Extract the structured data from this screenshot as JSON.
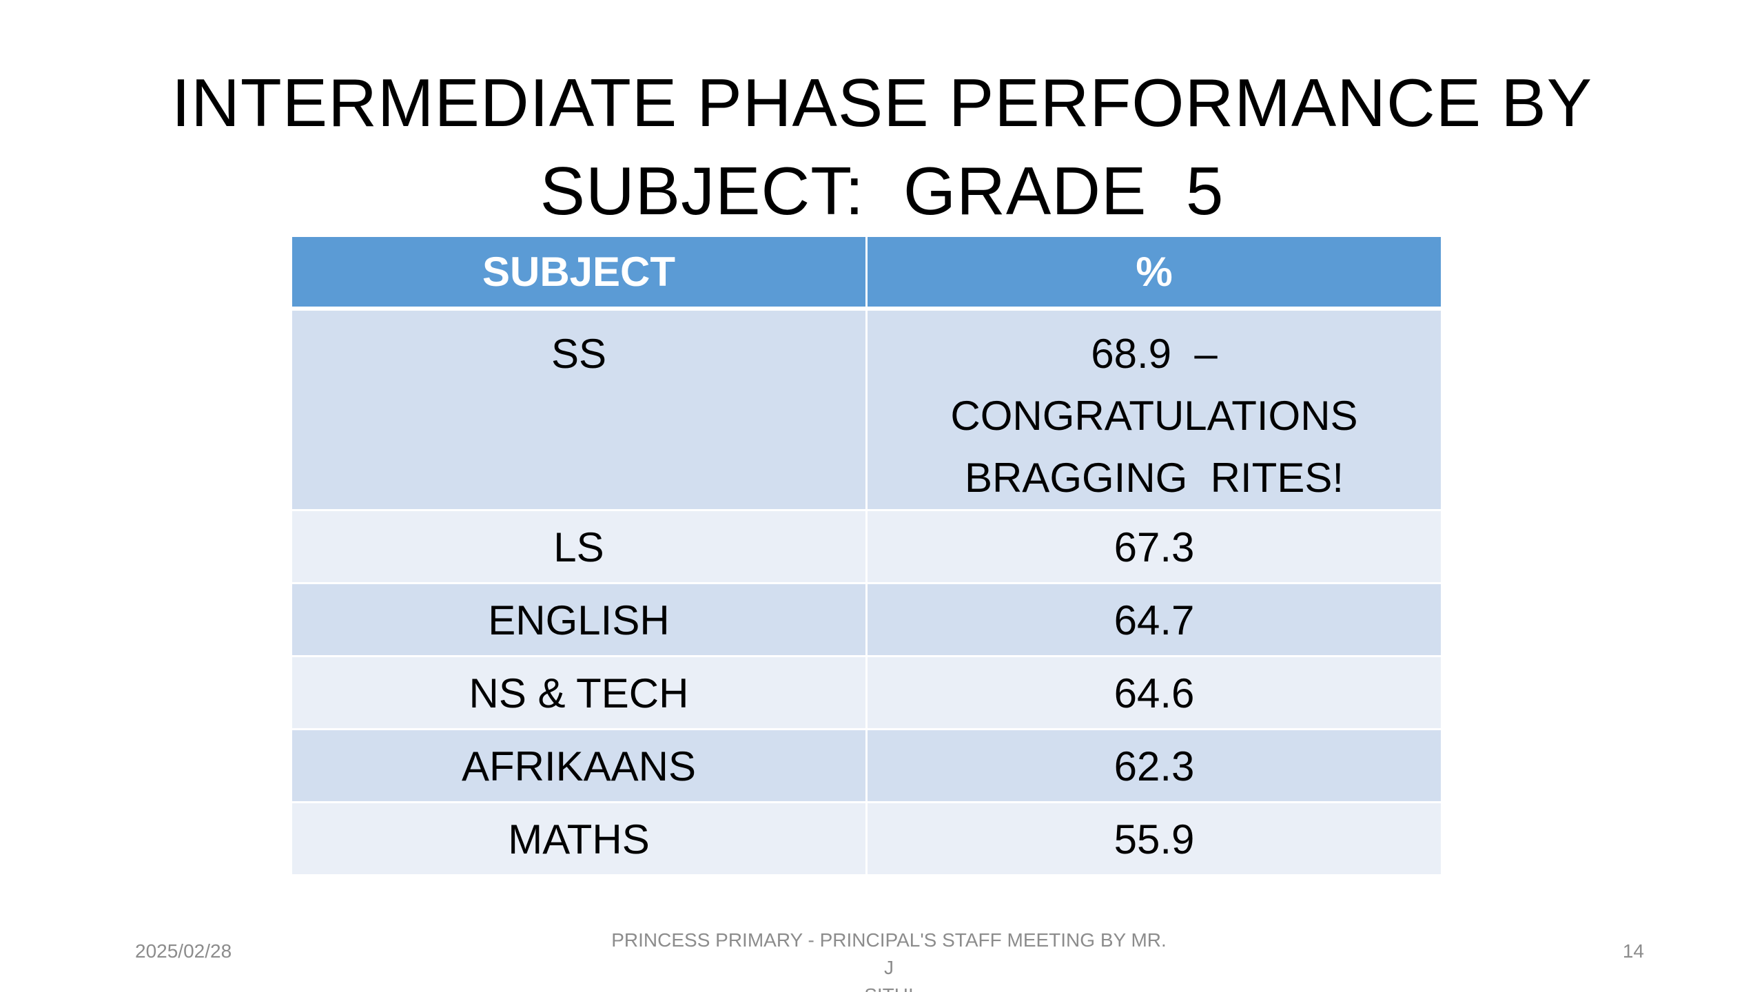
{
  "slide": {
    "title_line1": "INTERMEDIATE PHASE PERFORMANCE BY",
    "title_line2": "SUBJECT:  GRADE  5"
  },
  "table": {
    "headers": [
      "SUBJECT",
      "%"
    ],
    "rows": [
      {
        "subject": "SS",
        "value_lines": [
          "68.9  –",
          "CONGRATULATIONS",
          "BRAGGING  RITES!"
        ]
      },
      {
        "subject": "LS",
        "value": "67.3"
      },
      {
        "subject": "ENGLISH",
        "value": "64.7"
      },
      {
        "subject": "NS  &  TECH",
        "value": "64.6"
      },
      {
        "subject": "AFRIKAANS",
        "value": "62.3"
      },
      {
        "subject": "MATHS",
        "value": "55.9"
      }
    ]
  },
  "footer": {
    "date": "2025/02/28",
    "text_line1": "PRINCESS PRIMARY - PRINCIPAL'S STAFF MEETING BY MR. J",
    "text_line2": "SITHI",
    "page_number": "14"
  },
  "colors": {
    "header_bg": "#5b9bd5",
    "row_dark": "#d2deef",
    "row_light": "#eaeff7",
    "footer_text": "#8c8c8c"
  }
}
